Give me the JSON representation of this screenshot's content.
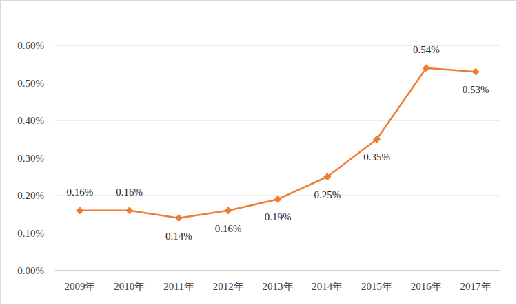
{
  "chart_data": {
    "type": "line",
    "categories": [
      "2009年",
      "2010年",
      "2011年",
      "2012年",
      "2013年",
      "2014年",
      "2015年",
      "2016年",
      "2017年"
    ],
    "values": [
      0.16,
      0.16,
      0.14,
      0.16,
      0.19,
      0.25,
      0.35,
      0.54,
      0.53
    ],
    "value_labels": [
      "0.16%",
      "0.16%",
      "0.14%",
      "0.16%",
      "0.19%",
      "0.25%",
      "0.35%",
      "0.54%",
      "0.53%"
    ],
    "color": "#ed7d31",
    "marker": "diamond",
    "grid": true,
    "data_labels": true,
    "ylim": [
      0,
      0.6
    ],
    "yticks": [
      {
        "value": 0,
        "label": "0.00%"
      },
      {
        "value": 0.1,
        "label": "0.10%"
      },
      {
        "value": 0.2,
        "label": "0.20%"
      },
      {
        "value": 0.3,
        "label": "0.30%"
      },
      {
        "value": 0.4,
        "label": "0.40%"
      },
      {
        "value": 0.5,
        "label": "0.50%"
      },
      {
        "value": 0.6,
        "label": "0.60%"
      }
    ]
  }
}
